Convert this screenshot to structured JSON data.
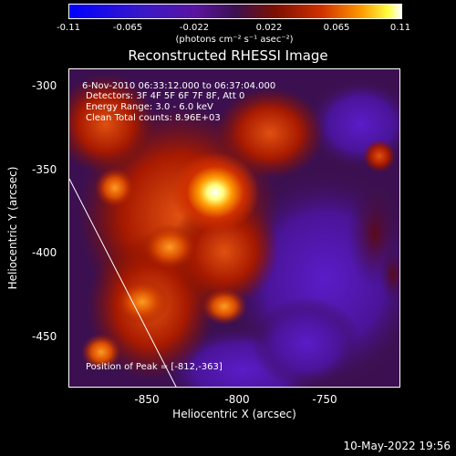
{
  "colorbar": {
    "ticks": [
      "-0.11",
      "-0.065",
      "-0.022",
      "0.022",
      "0.065",
      "0.11"
    ],
    "units": "(photons cm⁻² s⁻¹ asec⁻²)"
  },
  "title": "Reconstructed RHESSI Image",
  "info": {
    "time": "6-Nov-2010 06:33:12.000 to 06:37:04.000",
    "detectors": "Detectors: 3F 4F 5F 6F 7F 8F, Att 0",
    "energy": "Energy Range: 3.0 - 6.0 keV",
    "clean": "Clean    Total counts: 8.96E+03"
  },
  "peak_label": "Position of Peak = [-812,-363]",
  "axes": {
    "xlabel": "Heliocentric X (arcsec)",
    "ylabel": "Heliocentric Y (arcsec)",
    "xticks": [
      "-850",
      "-800",
      "-750"
    ],
    "yticks": [
      "-300",
      "-350",
      "-400",
      "-450"
    ]
  },
  "footer": {
    "timestamp": "10-May-2022 19:56"
  },
  "colors": {
    "background": "#000000",
    "peak": "#ffffff",
    "low": "#5a14a0"
  }
}
